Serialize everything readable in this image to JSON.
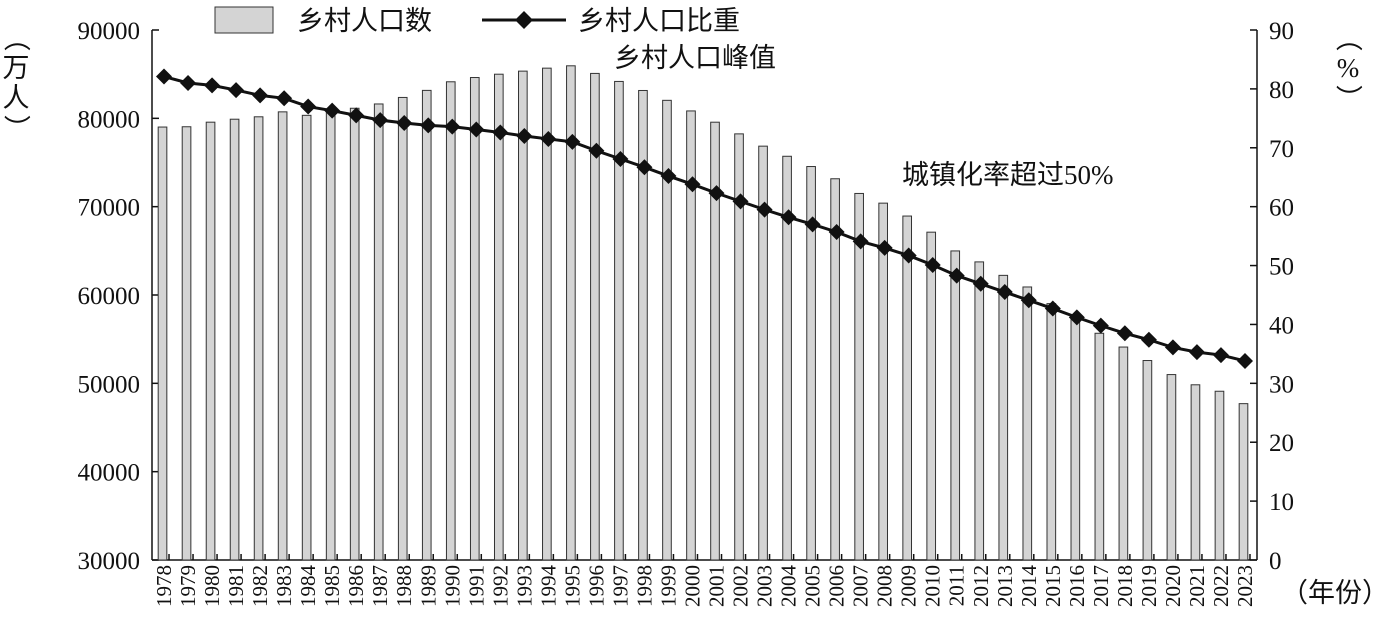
{
  "chart_data": {
    "type": "bar",
    "categories": [
      "1978",
      "1979",
      "1980",
      "1981",
      "1982",
      "1983",
      "1984",
      "1985",
      "1986",
      "1987",
      "1988",
      "1989",
      "1990",
      "1991",
      "1992",
      "1993",
      "1994",
      "1995",
      "1996",
      "1997",
      "1998",
      "1999",
      "2000",
      "2001",
      "2002",
      "2003",
      "2004",
      "2005",
      "2006",
      "2007",
      "2008",
      "2009",
      "2010",
      "2011",
      "2012",
      "2013",
      "2014",
      "2015",
      "2016",
      "2017",
      "2018",
      "2019",
      "2020",
      "2021",
      "2022",
      "2023"
    ],
    "series": [
      {
        "name": "乡村人口数",
        "type": "bar",
        "axis": "left",
        "color": "#d4d4d4",
        "values": [
          79014,
          79047,
          79565,
          79901,
          80174,
          80734,
          80340,
          80757,
          81141,
          81626,
          82365,
          83164,
          84138,
          84620,
          84996,
          85344,
          85681,
          85947,
          85085,
          84177,
          83153,
          82038,
          80837,
          79563,
          78241,
          76851,
          75705,
          74544,
          73160,
          71496,
          70399,
          68938,
          67113,
          64989,
          63747,
          62224,
          60908,
          59024,
          57308,
          55668,
          54108,
          52582,
          50992,
          49835,
          49104,
          47700
        ]
      },
      {
        "name": "乡村人口比重",
        "type": "line",
        "axis": "right",
        "color": "#111111",
        "marker": "diamond",
        "values": [
          82.1,
          81.0,
          80.6,
          79.8,
          78.9,
          78.4,
          77.0,
          76.3,
          75.5,
          74.7,
          74.2,
          73.8,
          73.6,
          73.1,
          72.6,
          72.0,
          71.5,
          71.0,
          69.5,
          68.1,
          66.7,
          65.2,
          63.8,
          62.3,
          60.9,
          59.5,
          58.2,
          57.0,
          55.7,
          54.1,
          53.0,
          51.7,
          50.1,
          48.3,
          46.9,
          45.5,
          44.1,
          42.7,
          41.2,
          39.8,
          38.5,
          37.4,
          36.1,
          35.3,
          34.8,
          33.8
        ]
      }
    ],
    "y_left": {
      "min": 30000,
      "max": 90000,
      "step": 10000,
      "label": "（万人）"
    },
    "y_right": {
      "min": 0,
      "max": 90,
      "step": 10,
      "label": "（%）"
    },
    "x_unit": "（年份）",
    "legend": {
      "placement": "top"
    },
    "annotations": [
      {
        "text": "乡村人口峰值",
        "near": "1995"
      },
      {
        "text": "城镇化率超过50%",
        "near": "2011"
      }
    ],
    "grid": false
  }
}
